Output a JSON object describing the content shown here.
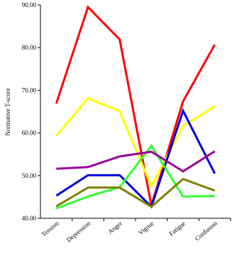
{
  "chart_data": {
    "type": "line",
    "y_label": "Normative T-score",
    "categories": [
      "Tension",
      "Depression",
      "Anger",
      "Vigour",
      "Fatigue",
      "Confusion"
    ],
    "series": [
      {
        "color": "#ff0000",
        "values": [
          66.9,
          89.5,
          81.9,
          43.0,
          67.4,
          80.7
        ]
      },
      {
        "color": "#ffff00",
        "values": [
          59.3,
          68.1,
          65.1,
          47.5,
          61.6,
          66.2
        ]
      },
      {
        "color": "#0000dd",
        "values": [
          45.3,
          50.1,
          50.1,
          42.7,
          65.2,
          50.5
        ]
      },
      {
        "color": "#33ff33",
        "values": [
          42.3,
          45.1,
          47.3,
          57.0,
          45.1,
          45.2
        ]
      },
      {
        "color": "#990099",
        "values": [
          51.6,
          52.0,
          54.5,
          55.6,
          51.0,
          55.7
        ]
      },
      {
        "color": "#808000",
        "values": [
          42.8,
          47.2,
          47.2,
          42.7,
          49.2,
          46.5
        ]
      }
    ],
    "ylim": [
      40,
      90
    ],
    "yticks": [
      {
        "value": 40,
        "label": "40.00"
      },
      {
        "value": 50,
        "label": "50.00"
      },
      {
        "value": 60,
        "label": "60.00"
      },
      {
        "value": 70,
        "label": "70.00"
      },
      {
        "value": 80,
        "label": "80.00"
      },
      {
        "value": 90,
        "label": "90.00"
      }
    ],
    "grid": false
  }
}
